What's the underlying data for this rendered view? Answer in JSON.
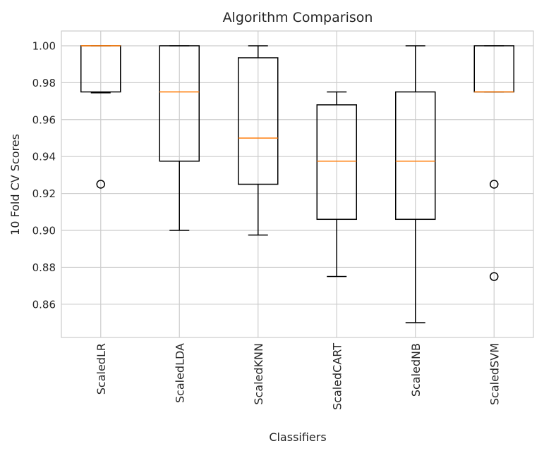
{
  "chart_data": {
    "type": "box",
    "title": "Algorithm Comparison",
    "xlabel": "Classifiers",
    "ylabel": "10 Fold CV Scores",
    "ylim": [
      0.842,
      1.008
    ],
    "yticks": [
      0.86,
      0.88,
      0.9,
      0.92,
      0.94,
      0.96,
      0.98,
      1.0
    ],
    "ytick_labels": [
      "0.86",
      "0.88",
      "0.90",
      "0.92",
      "0.94",
      "0.96",
      "0.98",
      "1.00"
    ],
    "grid": true,
    "colors": {
      "box": "#000000",
      "median": "#ff7f0e",
      "grid": "#cccccc",
      "frame": "#cccccc"
    },
    "categories": [
      "ScaledLR",
      "ScaledLDA",
      "ScaledKNN",
      "ScaledCART",
      "ScaledNB",
      "ScaledSVM"
    ],
    "boxes": [
      {
        "name": "ScaledLR",
        "whisker_low": 0.9745,
        "q1": 0.975,
        "median": 1.0,
        "q3": 1.0,
        "whisker_high": 1.0,
        "outliers": [
          0.925
        ]
      },
      {
        "name": "ScaledLDA",
        "whisker_low": 0.9,
        "q1": 0.9375,
        "median": 0.975,
        "q3": 1.0,
        "whisker_high": 1.0,
        "outliers": []
      },
      {
        "name": "ScaledKNN",
        "whisker_low": 0.8975,
        "q1": 0.925,
        "median": 0.95,
        "q3": 0.9935,
        "whisker_high": 1.0,
        "outliers": []
      },
      {
        "name": "ScaledCART",
        "whisker_low": 0.875,
        "q1": 0.906,
        "median": 0.9375,
        "q3": 0.968,
        "whisker_high": 0.975,
        "outliers": []
      },
      {
        "name": "ScaledNB",
        "whisker_low": 0.85,
        "q1": 0.906,
        "median": 0.9375,
        "q3": 0.975,
        "whisker_high": 1.0,
        "outliers": []
      },
      {
        "name": "ScaledSVM",
        "whisker_low": 0.975,
        "q1": 0.975,
        "median": 0.975,
        "q3": 1.0,
        "whisker_high": 1.0,
        "outliers": [
          0.925,
          0.875
        ]
      }
    ]
  }
}
